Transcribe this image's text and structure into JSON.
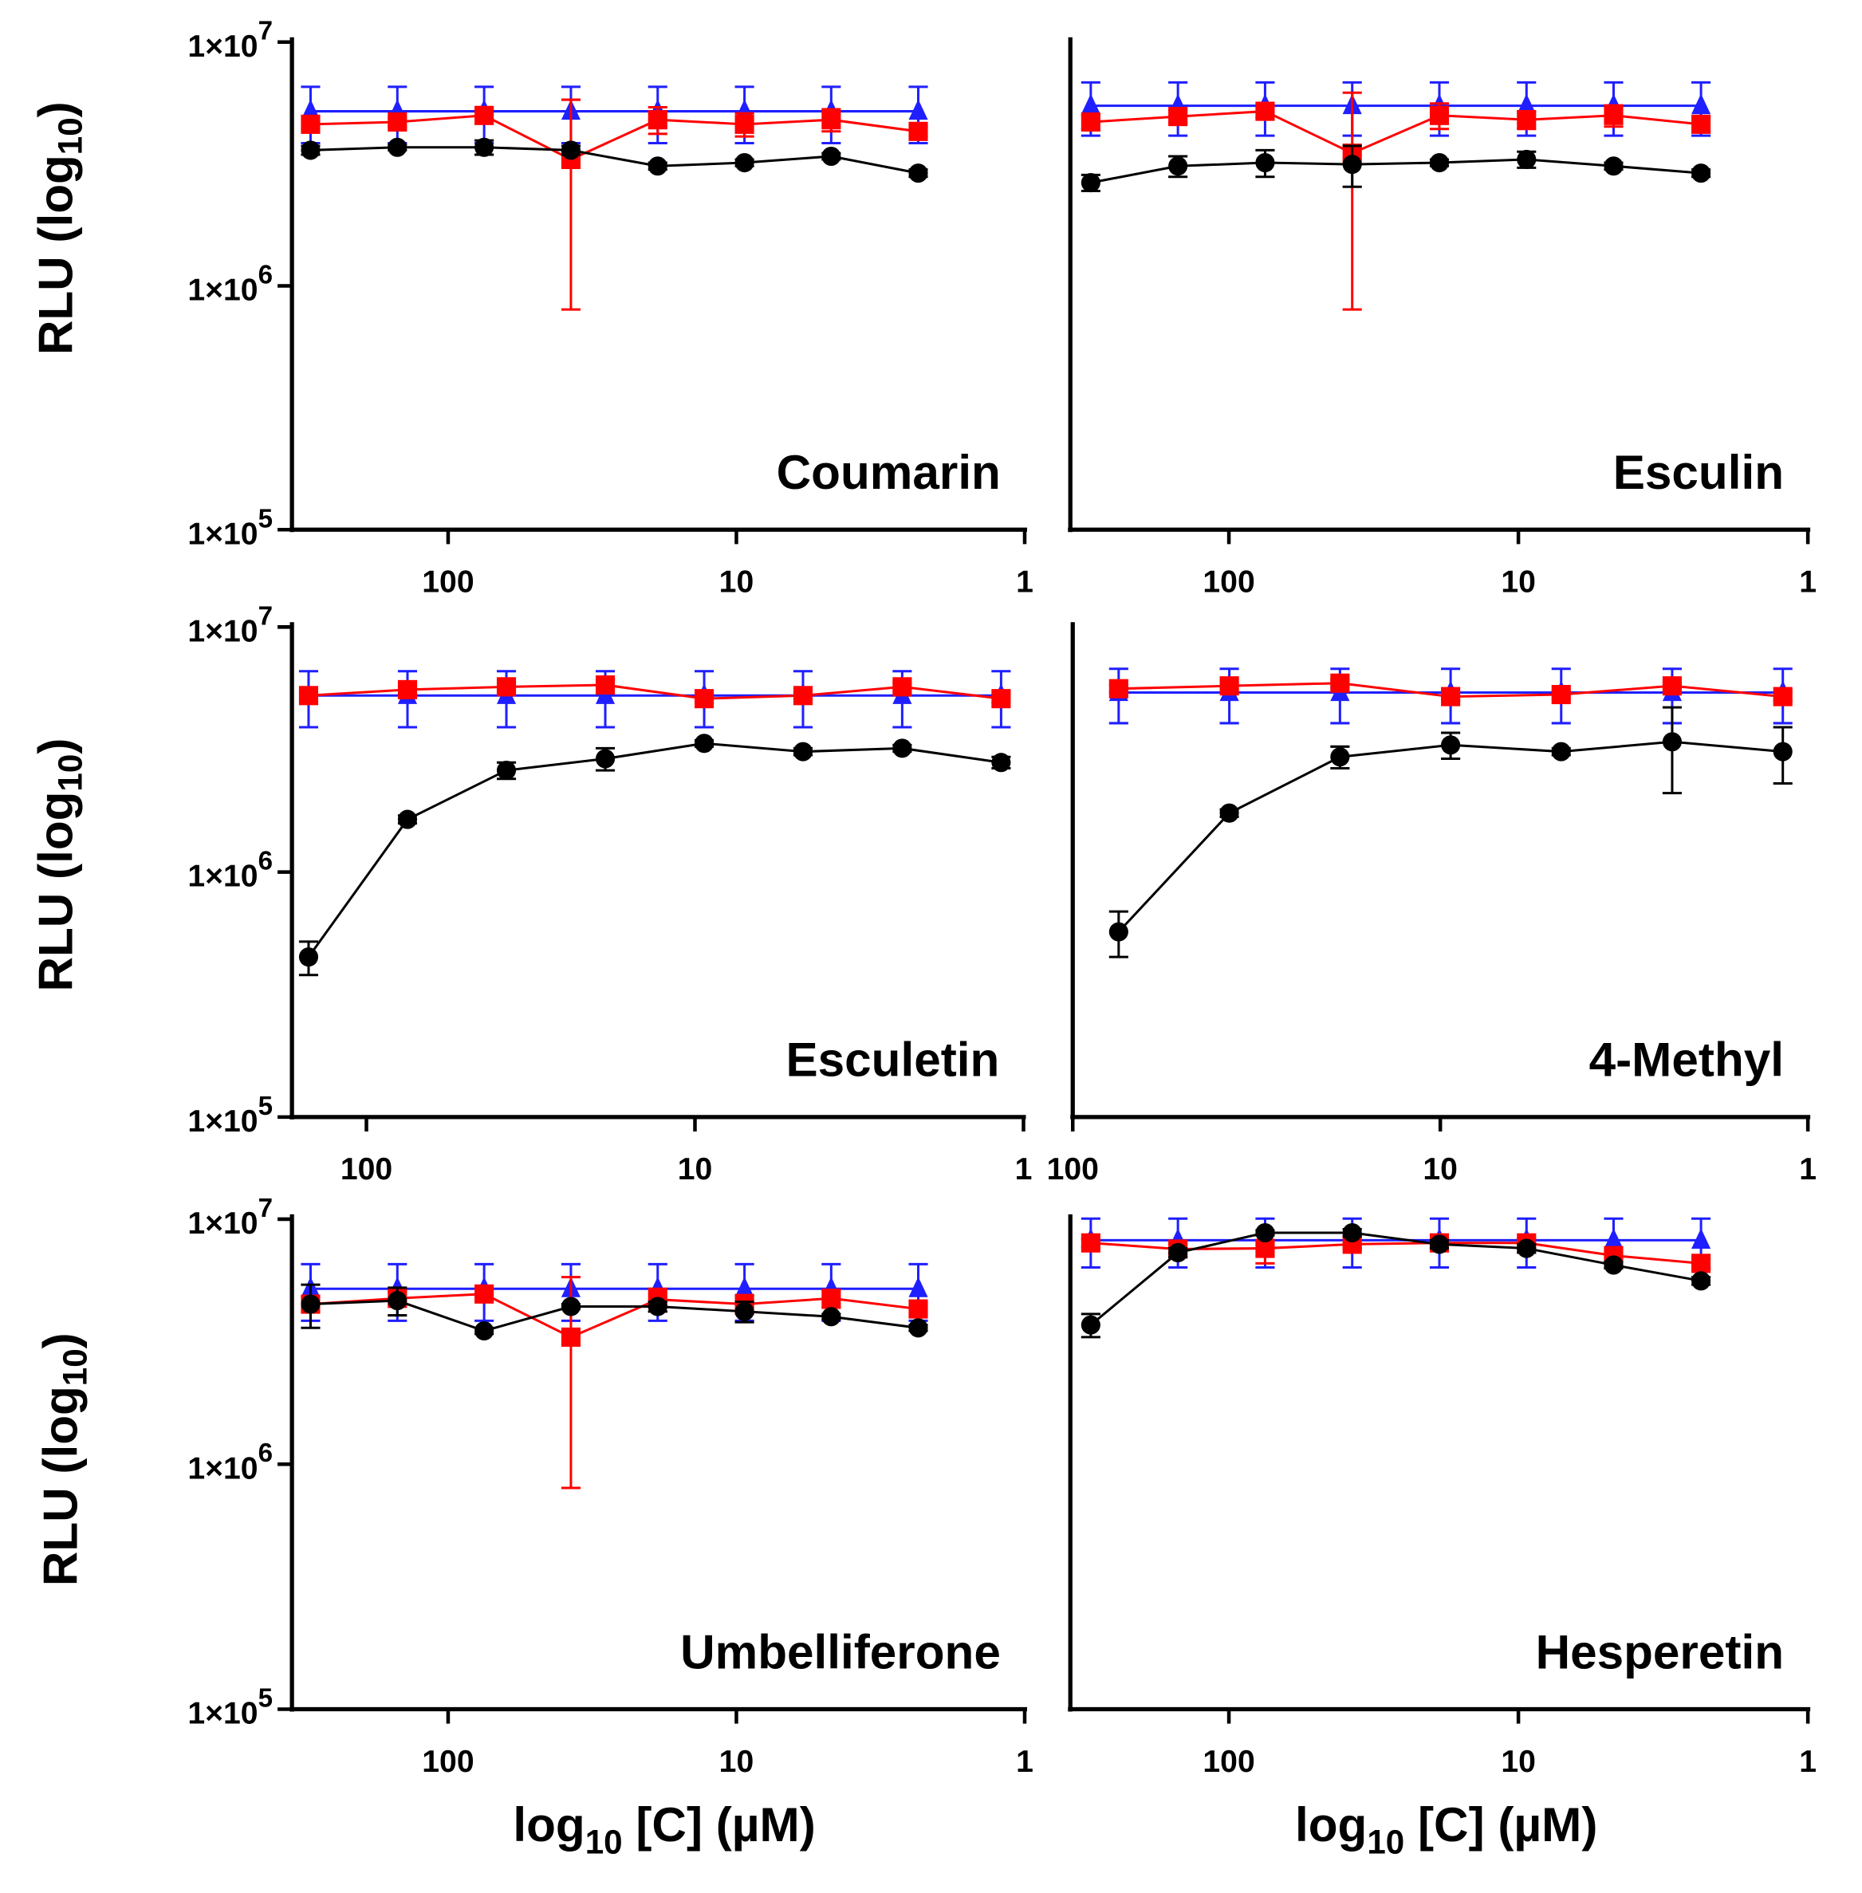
{
  "chart_data": {
    "type": "line",
    "ylabel": "RLU (log10)",
    "ylabel_base": "RLU (log",
    "ylabel_sub": "10",
    "ylabel_end": ")",
    "xlabel": "log10 [C] (µM)",
    "xlabel_base": "log",
    "xlabel_sub": "10",
    "xlabel_end": " [C] (µM)",
    "yscale": "log",
    "xscale": "log (reversed)",
    "ylim": [
      100000,
      10000000
    ],
    "yticks": [
      {
        "value": 10000000,
        "mant": "1×10",
        "exp": "7"
      },
      {
        "value": 1000000,
        "mant": "1×10",
        "exp": "6"
      },
      {
        "value": 100000,
        "mant": "1×10",
        "exp": "5"
      }
    ],
    "xticks": [
      {
        "value": 100,
        "label": "100"
      },
      {
        "value": 10,
        "label": "10"
      },
      {
        "value": 1,
        "label": "1"
      }
    ],
    "series_colors": {
      "black": "#000000",
      "red": "#ff0000",
      "blue": "#1f1fff"
    },
    "panels": [
      {
        "title": "Coumarin",
        "xlim": [
          347,
          1
        ],
        "x": [
          300,
          150,
          75,
          37.5,
          18.75,
          9.375,
          4.69,
          2.34
        ],
        "series": [
          {
            "name": "blue",
            "marker": "triangle",
            "values": [
              5200000,
              5200000,
              5200000,
              5200000,
              5200000,
              5200000,
              5200000,
              5200000
            ],
            "err": [
              1350000,
              1350000,
              1350000,
              1350000,
              1350000,
              1350000,
              1350000,
              1350000
            ]
          },
          {
            "name": "red",
            "marker": "square",
            "values": [
              4600000,
              4700000,
              5000000,
              3300000,
              4800000,
              4600000,
              4800000,
              4300000
            ],
            "err": [
              200000,
              200000,
              300000,
              2500000,
              600000,
              500000,
              500000,
              200000
            ]
          },
          {
            "name": "black",
            "marker": "circle",
            "values": [
              3600000,
              3700000,
              3700000,
              3600000,
              3100000,
              3200000,
              3400000,
              2900000
            ],
            "err": [
              150000,
              100000,
              250000,
              150000,
              100000,
              100000,
              100000,
              100000
            ]
          }
        ]
      },
      {
        "title": "Esculin",
        "xlim": [
          357,
          1
        ],
        "x": [
          300,
          150,
          75,
          37.5,
          18.75,
          9.375,
          4.69,
          2.34
        ],
        "series": [
          {
            "name": "blue",
            "marker": "triangle",
            "values": [
              5480000,
              5480000,
              5480000,
              5480000,
              5480000,
              5480000,
              5480000,
              5480000
            ],
            "err": [
              1350000,
              1350000,
              1350000,
              1350000,
              1350000,
              1350000,
              1350000,
              1350000
            ]
          },
          {
            "name": "red",
            "marker": "square",
            "values": [
              4700000,
              4950000,
              5200000,
              3500000,
              5000000,
              4800000,
              5000000,
              4600000
            ],
            "err": [
              300000,
              300000,
              300000,
              2700000,
              600000,
              400000,
              500000,
              300000
            ]
          },
          {
            "name": "black",
            "marker": "circle",
            "values": [
              2650000,
              3100000,
              3200000,
              3150000,
              3200000,
              3300000,
              3100000,
              2900000
            ],
            "err": [
              200000,
              300000,
              400000,
              600000,
              100000,
              250000,
              100000,
              100000
            ]
          }
        ]
      },
      {
        "title": "Esculetin",
        "xlim": [
          169,
          1
        ],
        "x": [
          150,
          75,
          37.5,
          18.75,
          9.375,
          4.69,
          2.34,
          1.17
        ],
        "series": [
          {
            "name": "blue",
            "marker": "triangle",
            "values": [
              5250000,
              5250000,
              5250000,
              5250000,
              5250000,
              5250000,
              5250000,
              5250000
            ],
            "err": [
              1350000,
              1350000,
              1350000,
              1350000,
              1350000,
              1350000,
              1350000,
              1350000
            ]
          },
          {
            "name": "red",
            "marker": "square",
            "values": [
              5250000,
              5550000,
              5700000,
              5800000,
              5100000,
              5250000,
              5700000,
              5100000
            ],
            "err": [
              200000,
              200000,
              200000,
              300000,
              200000,
              200000,
              200000,
              200000
            ]
          },
          {
            "name": "black",
            "marker": "circle",
            "values": [
              450000,
              1640000,
              2600000,
              2900000,
              3350000,
              3100000,
              3200000,
              2800000
            ],
            "err": [
              70000,
              60000,
              200000,
              300000,
              100000,
              100000,
              100000,
              150000
            ]
          }
        ]
      },
      {
        "title": "4-Methyl",
        "xlim": [
          100,
          1
        ],
        "x": [
          75,
          37.5,
          18.75,
          9.375,
          4.69,
          2.34,
          1.17
        ],
        "series": [
          {
            "name": "blue",
            "marker": "triangle",
            "values": [
              5400000,
              5400000,
              5400000,
              5400000,
              5400000,
              5400000,
              5400000
            ],
            "err": [
              1350000,
              1350000,
              1350000,
              1350000,
              1350000,
              1350000,
              1350000
            ]
          },
          {
            "name": "red",
            "marker": "square",
            "values": [
              5600000,
              5750000,
              5900000,
              5200000,
              5300000,
              5750000,
              5200000
            ],
            "err": [
              200000,
              200000,
              200000,
              200000,
              200000,
              200000,
              200000
            ]
          },
          {
            "name": "black",
            "marker": "circle",
            "values": [
              570000,
              1740000,
              2950000,
              3300000,
              3100000,
              3400000,
              3100000
            ],
            "err": [
              120000,
              60000,
              300000,
              400000,
              100000,
              1300000,
              800000
            ]
          }
        ]
      },
      {
        "title": "Umbelliferone",
        "xlim": [
          347,
          1
        ],
        "x": [
          300,
          150,
          75,
          37.5,
          18.75,
          9.375,
          4.69,
          2.34
        ],
        "series": [
          {
            "name": "blue",
            "marker": "triangle",
            "values": [
              5200000,
              5200000,
              5200000,
              5200000,
              5200000,
              5200000,
              5200000,
              5200000
            ],
            "err": [
              1350000,
              1350000,
              1350000,
              1350000,
              1350000,
              1350000,
              1350000,
              1350000
            ]
          },
          {
            "name": "red",
            "marker": "square",
            "values": [
              4500000,
              4750000,
              4950000,
              3300000,
              4700000,
              4500000,
              4750000,
              4300000
            ],
            "err": [
              300000,
              300000,
              300000,
              2500000,
              500000,
              400000,
              400000,
              200000
            ]
          },
          {
            "name": "black",
            "marker": "circle",
            "values": [
              4500000,
              4650000,
              3500000,
              4400000,
              4400000,
              4200000,
              4000000,
              3600000
            ],
            "err": [
              900000,
              600000,
              100000,
              100000,
              200000,
              400000,
              100000,
              100000
            ]
          }
        ]
      },
      {
        "title": "Hesperetin",
        "xlim": [
          357,
          1
        ],
        "x": [
          300,
          150,
          75,
          37.5,
          18.75,
          9.375,
          4.69,
          2.34
        ],
        "series": [
          {
            "name": "blue",
            "marker": "triangle",
            "values": [
              8200000,
              8200000,
              8200000,
              8200000,
              8200000,
              8200000,
              8200000,
              8200000
            ],
            "err": [
              1850000,
              1850000,
              1850000,
              1850000,
              1850000,
              1850000,
              1850000,
              1850000
            ]
          },
          {
            "name": "red",
            "marker": "square",
            "values": [
              8000000,
              7550000,
              7600000,
              7900000,
              8000000,
              8000000,
              7100000,
              6600000
            ],
            "err": [
              300000,
              400000,
              1000000,
              300000,
              300000,
              300000,
              300000,
              300000
            ]
          },
          {
            "name": "black",
            "marker": "circle",
            "values": [
              3700000,
              7300000,
              8800000,
              8800000,
              7900000,
              7600000,
              6500000,
              5600000
            ],
            "err": [
              400000,
              300000,
              200000,
              300000,
              300000,
              300000,
              200000,
              200000
            ]
          }
        ]
      }
    ]
  }
}
